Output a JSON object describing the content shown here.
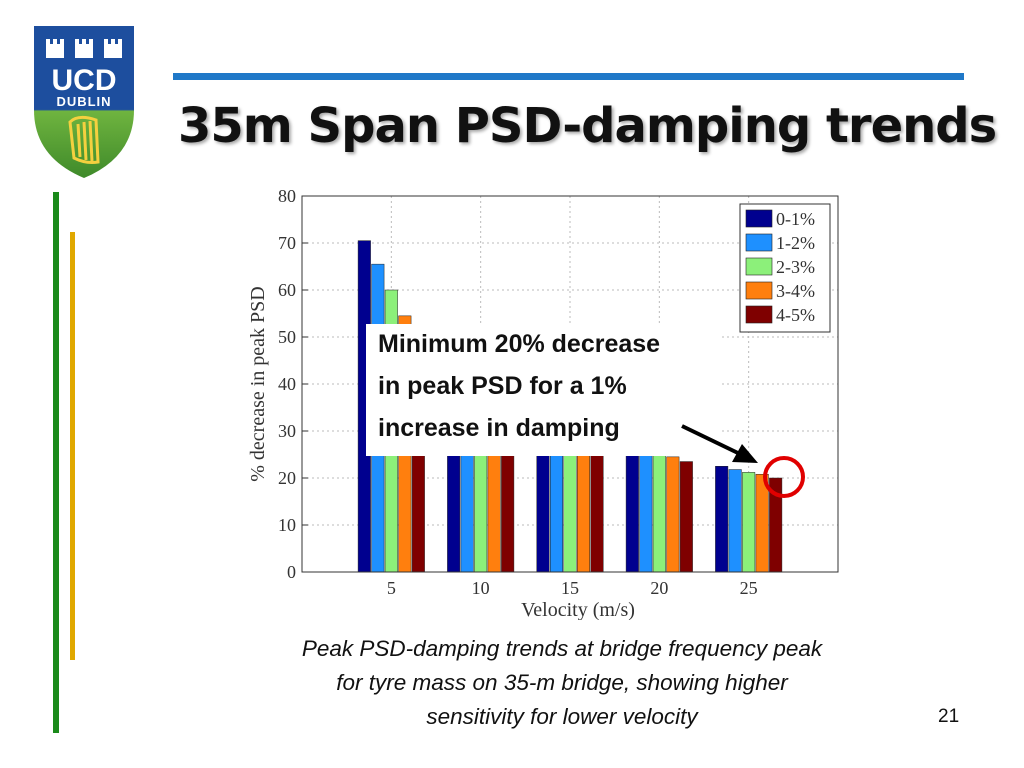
{
  "slide": {
    "title": "35m Span PSD-damping trends",
    "page_number": "21",
    "caption": [
      "Peak PSD-damping trends at bridge frequency peak",
      "for tyre mass on 35-m bridge, showing higher",
      "sensitivity for lower velocity"
    ],
    "callout": [
      "Minimum 20% decrease",
      "in peak PSD for a 1%",
      "increase in damping"
    ],
    "logo": {
      "line1": "UCD",
      "line2": "DUBLIN"
    },
    "colors": {
      "rule": "#1f78c8",
      "accent_green": "#1a8a1a",
      "accent_gold": "#e0a800",
      "highlight": "#e00000"
    }
  },
  "chart_data": {
    "type": "bar",
    "xlabel": "Velocity (m/s)",
    "ylabel": "% decrease in peak PSD",
    "categories": [
      "5",
      "10",
      "15",
      "20",
      "25"
    ],
    "ylim": [
      0,
      80
    ],
    "yticks": [
      "0",
      "10",
      "20",
      "30",
      "40",
      "50",
      "60",
      "70",
      "80"
    ],
    "grid": true,
    "legend_position": "top-right",
    "series": [
      {
        "name": "0-1%",
        "color": "#00008f",
        "values": [
          70.5,
          25,
          25,
          25,
          22.5
        ]
      },
      {
        "name": "1-2%",
        "color": "#1e90ff",
        "values": [
          65.5,
          25,
          25,
          25,
          21.8
        ]
      },
      {
        "name": "2-3%",
        "color": "#8cf07a",
        "values": [
          60,
          25,
          25,
          25,
          21.2
        ]
      },
      {
        "name": "3-4%",
        "color": "#ff7f0e",
        "values": [
          54.5,
          25,
          25,
          24.5,
          20.8
        ]
      },
      {
        "name": "4-5%",
        "color": "#7f0000",
        "values": [
          25,
          25,
          25,
          23.5,
          20.0
        ]
      }
    ]
  }
}
